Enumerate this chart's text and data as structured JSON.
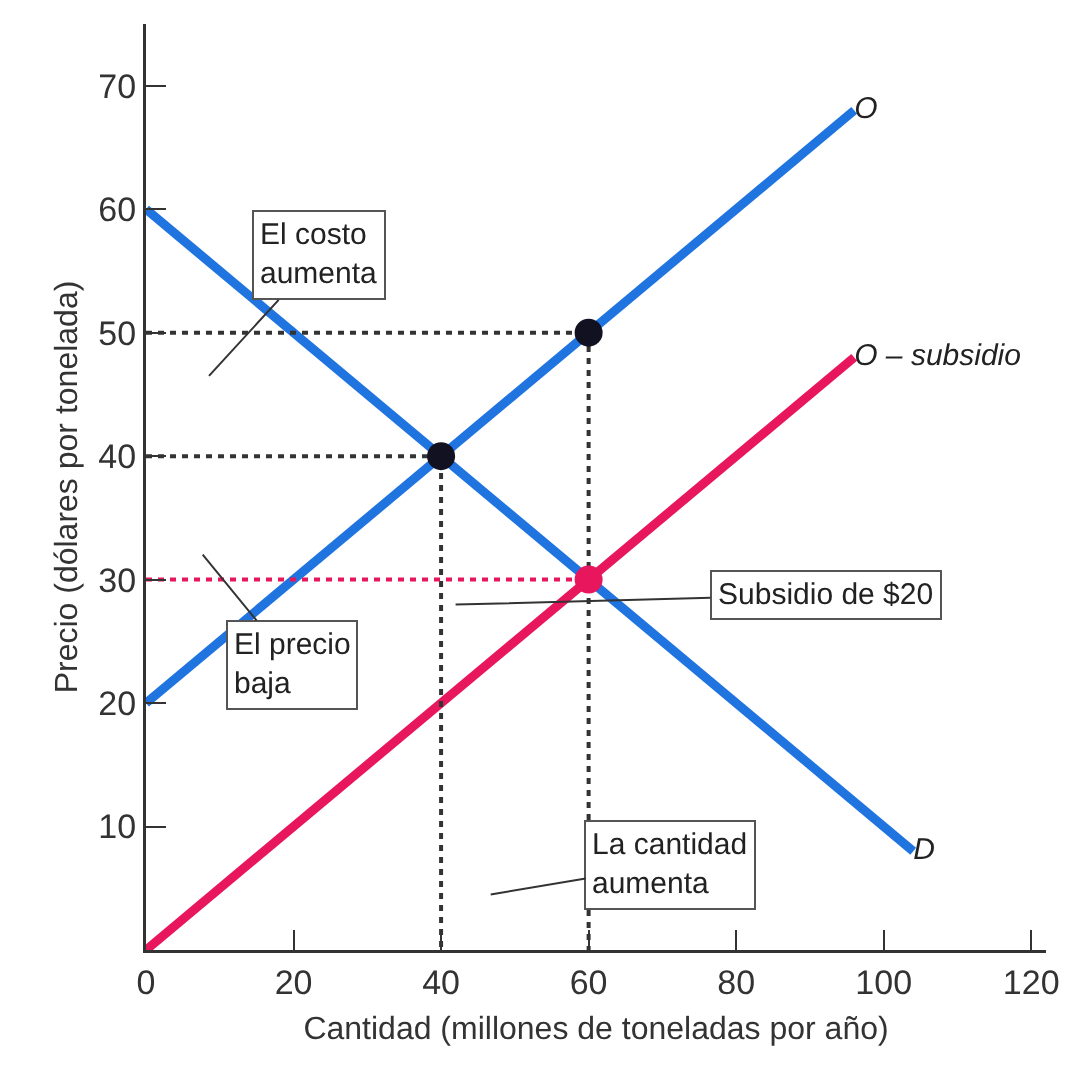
{
  "chart_data": {
    "type": "line",
    "xlabel": "Cantidad (millones de toneladas por año)",
    "ylabel": "Precio (dólares por tonelada)",
    "xlim": [
      0,
      122
    ],
    "ylim": [
      0,
      75
    ],
    "xticks": [
      0,
      20,
      40,
      60,
      80,
      100,
      120
    ],
    "yticks": [
      10,
      20,
      30,
      40,
      50,
      60,
      70
    ],
    "grid": false,
    "legend": false,
    "marker": "none",
    "line_style": "solid",
    "series": [
      {
        "name": "D",
        "color": "#1f74e0",
        "x": [
          0,
          104
        ],
        "values": [
          60,
          8
        ]
      },
      {
        "name": "O",
        "color": "#1f74e0",
        "x": [
          0,
          96
        ],
        "values": [
          20,
          68
        ]
      },
      {
        "name": "O – subsidio",
        "color": "#e8175d",
        "x": [
          0,
          96
        ],
        "values": [
          0,
          48
        ]
      },
      {
        "color": "#333333",
        "line_style": "dotted",
        "x": [
          0,
          40,
          40
        ],
        "values": [
          40,
          40,
          0
        ]
      },
      {
        "color": "#333333",
        "line_style": "dotted",
        "x": [
          0,
          60,
          60
        ],
        "values": [
          50,
          50,
          0
        ]
      },
      {
        "color": "#e8175d",
        "line_style": "dotted",
        "x": [
          0,
          60
        ],
        "values": [
          30,
          30
        ]
      },
      {
        "type": "scatter",
        "marker": "circle",
        "color": "#111122",
        "x": [
          40,
          60
        ],
        "values": [
          40,
          50
        ]
      },
      {
        "type": "scatter",
        "marker": "circle",
        "color": "#e8175d",
        "x": [
          60
        ],
        "values": [
          30
        ]
      }
    ],
    "annotations": [
      "El costo\naumenta",
      "El precio\nbaja",
      "Subsidio de $20",
      "La cantidad\naumenta"
    ]
  }
}
